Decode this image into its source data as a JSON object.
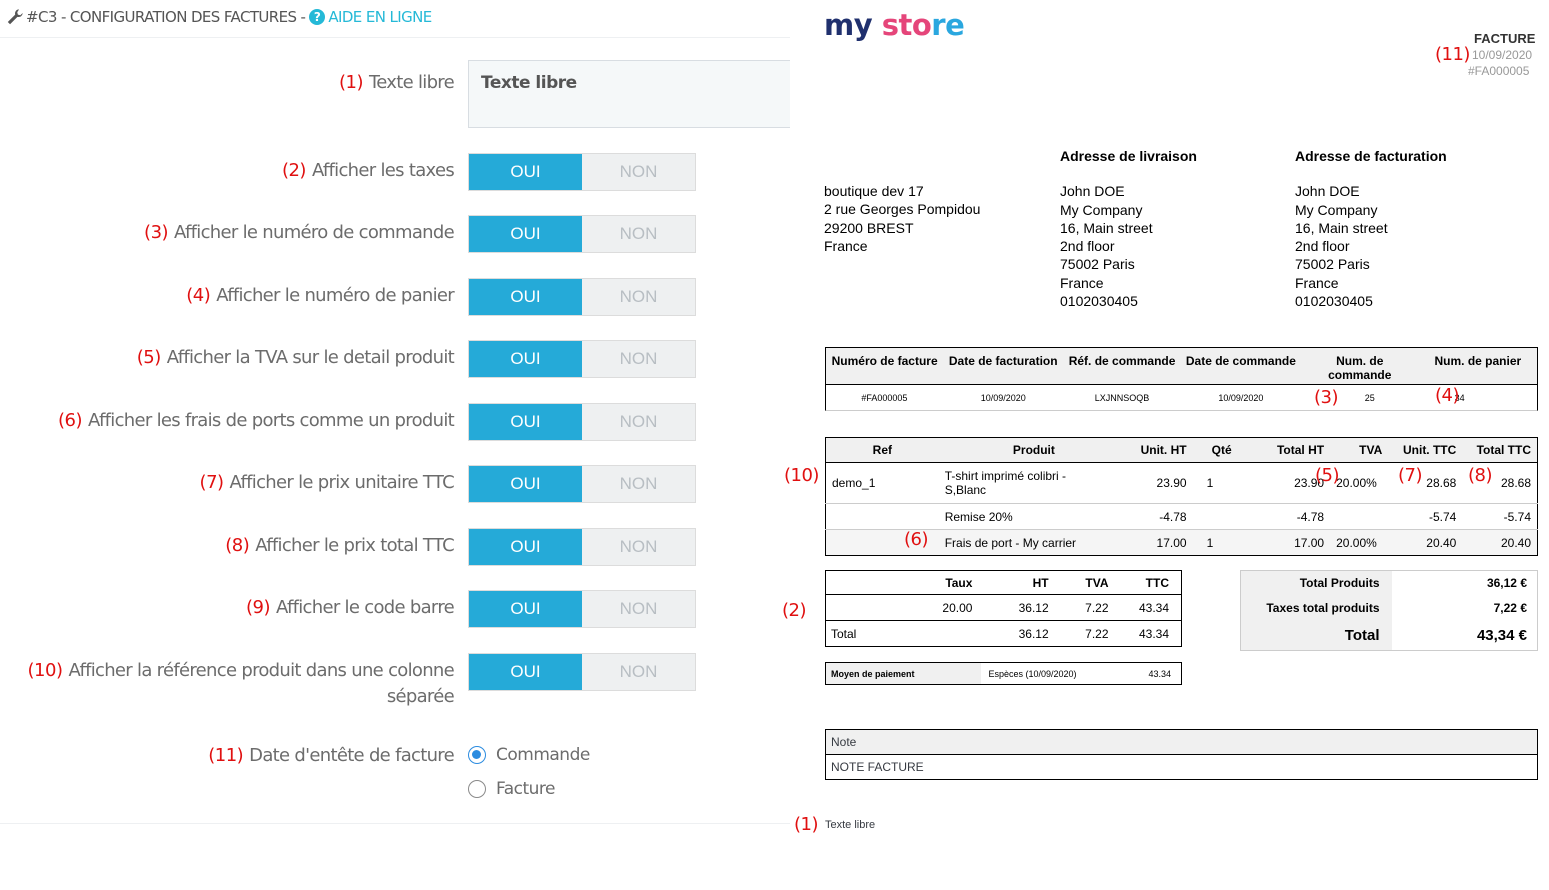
{
  "panel": {
    "title": "#C3 - CONFIGURATION DES FACTURES -",
    "help_link": "AIDE EN LIGNE",
    "wrench_icon": "wrench-icon",
    "help_icon": "question-circle-icon"
  },
  "form": {
    "free_text": {
      "number": "(1)",
      "label": "Texte libre",
      "value": "Texte libre"
    },
    "switch_on": "OUI",
    "switch_off": "NON",
    "toggles": [
      {
        "number": "(2)",
        "label": "Afficher les taxes",
        "value": "OUI"
      },
      {
        "number": "(3)",
        "label": "Afficher le numéro de commande",
        "value": "OUI"
      },
      {
        "number": "(4)",
        "label": "Afficher le numéro de panier",
        "value": "OUI"
      },
      {
        "number": "(5)",
        "label": "Afficher la TVA sur le detail produit",
        "value": "OUI"
      },
      {
        "number": "(6)",
        "label": "Afficher les frais de ports comme un produit",
        "value": "OUI"
      },
      {
        "number": "(7)",
        "label": "Afficher le prix unitaire TTC",
        "value": "OUI"
      },
      {
        "number": "(8)",
        "label": "Afficher le prix total TTC",
        "value": "OUI"
      },
      {
        "number": "(9)",
        "label": "Afficher le code barre",
        "value": "OUI"
      },
      {
        "number": "(10)",
        "label": "Afficher la référence produit dans une colonne",
        "label2": "séparée",
        "value": "OUI"
      }
    ],
    "date_header": {
      "number": "(11)",
      "label": "Date d'entête de facture",
      "options": [
        "Commande",
        "Facture"
      ],
      "selected": "Commande"
    }
  },
  "invoice": {
    "logo": {
      "my": "my",
      "store": "store"
    },
    "title": "FACTURE",
    "date": "10/09/2020",
    "number": "#FA000005",
    "markers": {
      "m11": "(11)",
      "m3": "(3)",
      "m4": "(4)",
      "m10": "(10)",
      "m5": "(5)",
      "m7": "(7)",
      "m8": "(8)",
      "m6": "(6)",
      "m2": "(2)",
      "m1": "(1)"
    },
    "shop_address": [
      "boutique dev 17",
      "2 rue Georges Pompidou",
      "29200 BREST",
      "France"
    ],
    "delivery": {
      "title": "Adresse de livraison",
      "lines": [
        "John DOE",
        "My Company",
        "16, Main street",
        "2nd floor",
        "75002 Paris",
        "France",
        "0102030405"
      ]
    },
    "billing": {
      "title": "Adresse de facturation",
      "lines": [
        "John DOE",
        "My Company",
        "16, Main street",
        "2nd floor",
        "75002 Paris",
        "France",
        "0102030405"
      ]
    },
    "summary": {
      "headers": [
        "Numéro de facture",
        "Date de facturation",
        "Réf. de commande",
        "Date de commande",
        "Num. de commande",
        "Num. de panier"
      ],
      "values": [
        "#FA000005",
        "10/09/2020",
        "LXJNNSOQB",
        "10/09/2020",
        "25",
        "34"
      ]
    },
    "products": {
      "headers": [
        "Ref",
        "Produit",
        "Unit. HT",
        "Qté",
        "Total HT",
        "TVA",
        "Unit. TTC",
        "Total TTC"
      ],
      "rows": [
        {
          "ref": "demo_1",
          "product": "T-shirt imprimé colibri -",
          "product2": "S,Blanc",
          "unit_ht": "23.90",
          "qty": "1",
          "total_ht": "23.90",
          "tva": "20.00%",
          "unit_ttc": "28.68",
          "total_ttc": "28.68"
        },
        {
          "ref": "",
          "product": "Remise 20%",
          "unit_ht": "-4.78",
          "qty": "",
          "total_ht": "-4.78",
          "tva": "",
          "unit_ttc": "-5.74",
          "total_ttc": "-5.74"
        },
        {
          "ref": "",
          "product": "Frais de port - My carrier",
          "unit_ht": "17.00",
          "qty": "1",
          "total_ht": "17.00",
          "tva": "20.00%",
          "unit_ttc": "20.40",
          "total_ttc": "20.40"
        }
      ]
    },
    "taxes": {
      "headers": [
        "Taux",
        "HT",
        "TVA",
        "TTC"
      ],
      "rows": [
        {
          "label": "",
          "taux": "20.00",
          "ht": "36.12",
          "tva": "7.22",
          "ttc": "43.34"
        },
        {
          "label": "Total",
          "taux": "",
          "ht": "36.12",
          "tva": "7.22",
          "ttc": "43.34"
        }
      ]
    },
    "totals": [
      {
        "label": "Total Produits",
        "value": "36,12 €"
      },
      {
        "label": "Taxes total produits",
        "value": "7,22 €"
      },
      {
        "label": "Total",
        "value": "43,34 €"
      }
    ],
    "payment": {
      "label": "Moyen de paiement",
      "method": "Espèces (10/09/2020)",
      "amount": "43.34"
    },
    "note": {
      "label": "Note",
      "value": "NOTE FACTURE"
    },
    "free_text": "Texte libre"
  }
}
